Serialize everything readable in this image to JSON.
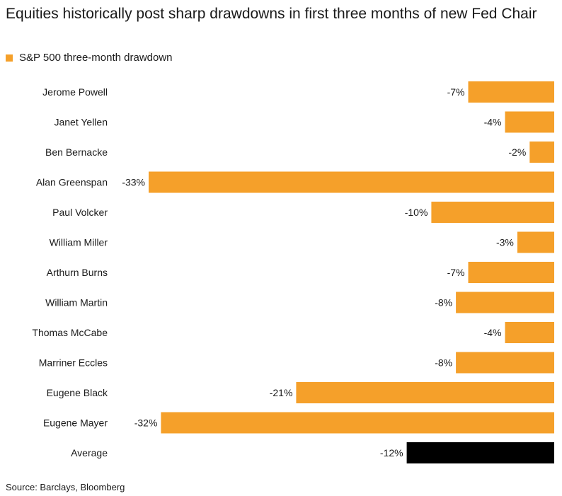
{
  "chart_data": {
    "type": "bar",
    "orientation": "horizontal",
    "title": "Equities historically post sharp drawdowns in first three months of new Fed Chair",
    "legend": {
      "label": "S&P 500 three-month drawdown",
      "placement": "top-left"
    },
    "categories": [
      "Jerome Powell",
      "Janet Yellen",
      "Ben Bernacke",
      "Alan Greenspan",
      "Paul Volcker",
      "William Miller",
      "Arthurn Burns",
      "William Martin",
      "Thomas McCabe",
      "Marriner Eccles",
      "Eugene Black",
      "Eugene Mayer",
      "Average"
    ],
    "values": [
      -7,
      -4,
      -2,
      -33,
      -10,
      -3,
      -7,
      -8,
      -4,
      -8,
      -21,
      -32,
      -12
    ],
    "value_labels": [
      "-7%",
      "-4%",
      "-2%",
      "-33%",
      "-10%",
      "-3%",
      "-7%",
      "-8%",
      "-4%",
      "-8%",
      "-21%",
      "-32%",
      "-12%"
    ],
    "xlim": [
      -33,
      0
    ],
    "grid": false,
    "colors": {
      "series": "#f5a02a",
      "average": "#000000"
    }
  },
  "source": "Source: Barclays, Bloomberg"
}
